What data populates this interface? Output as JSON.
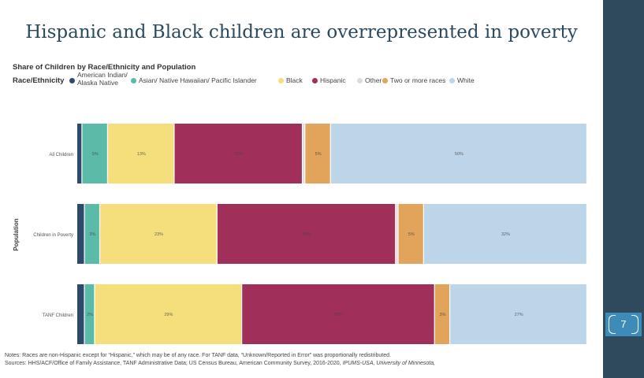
{
  "slide": {
    "title": "Hispanic and Black children are overrepresented in poverty",
    "page_number": "7",
    "notes": "Notes: Races are non-Hispanic except for “Hispanic,” which may be of any race. For TANF data, “Unknown/Reported in Error” was proportionally redistributed.",
    "sources_prefix": "Sources: HHS/ACF/Office of Family Assistance, TANF Administrative Data; US Census Bureau, American Community Survey, 2016-2020,",
    "sources_italic": "IPUMS-USA, University of Minnesota,"
  },
  "chart_data": {
    "type": "bar",
    "orientation": "horizontal-stacked-100",
    "title": "Share of Children by Race/Ethnicity and Population",
    "ylabel": "Population",
    "legend_title": "Race/Ethnicity",
    "legend_position": "top-left",
    "categories": [
      "All Children",
      "Children in Poverty",
      "TANF Children"
    ],
    "series": [
      {
        "name": "American Indian/ Alaska Native",
        "color": "#2d4a6a",
        "values": [
          1,
          1.5,
          1.5
        ],
        "labels": [
          "",
          "",
          ""
        ]
      },
      {
        "name": "Asian/ Native Hawaiian/ Pacific Islander",
        "color": "#5bbaa8",
        "values": [
          5,
          3,
          2
        ],
        "labels": [
          "5%",
          "3%",
          "2%"
        ]
      },
      {
        "name": "Black",
        "color": "#f5df7c",
        "values": [
          13,
          23,
          29
        ],
        "labels": [
          "13%",
          "23%",
          "29%"
        ]
      },
      {
        "name": "Hispanic",
        "color": "#a0305a",
        "values": [
          25,
          35,
          38
        ],
        "labels": [
          "25%",
          "35%",
          "38%"
        ]
      },
      {
        "name": "Other",
        "color": "#dcdcdc",
        "values": [
          0.5,
          0.5,
          0
        ],
        "labels": [
          "",
          "",
          ""
        ]
      },
      {
        "name": "Two or more races",
        "color": "#e2a35a",
        "values": [
          5,
          5,
          3
        ],
        "labels": [
          "5%",
          "5%",
          "3%"
        ]
      },
      {
        "name": "White",
        "color": "#bdd5e8",
        "values": [
          50,
          32,
          27
        ],
        "labels": [
          "50%",
          "32%",
          "27%"
        ]
      }
    ]
  }
}
